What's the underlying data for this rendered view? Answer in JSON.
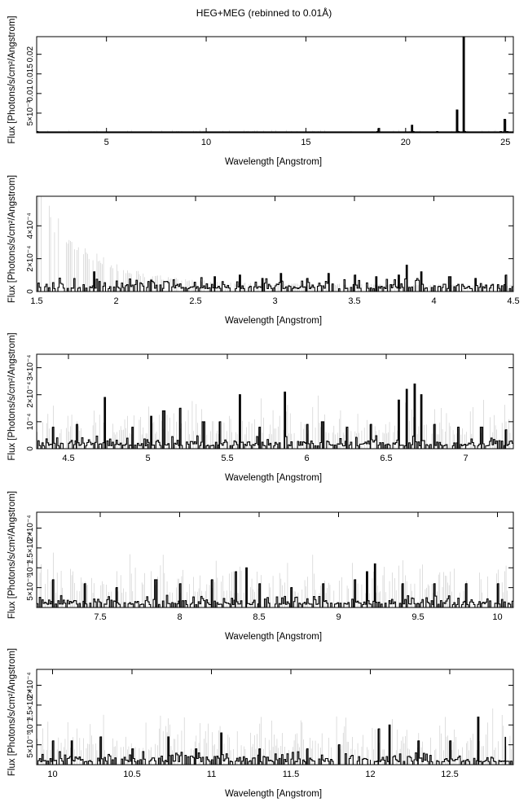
{
  "page_title": "HEG+MEG (rebinned to 0.01Å)",
  "chart_data": [
    {
      "type": "line",
      "title": "HEG+MEG (rebinned to 0.01Å)",
      "xlabel": "Wavelength [Angstrom]",
      "ylabel": "Flux [Photons/s/cm²/Angstrom]",
      "xlim": [
        1.5,
        25.4
      ],
      "ylim": [
        0,
        0.0245
      ],
      "xticks": [
        5,
        10,
        15,
        20,
        25
      ],
      "xtick_labels": [
        "5",
        "10",
        "15",
        "20",
        "25"
      ],
      "yticks": [
        0.005,
        0.01,
        0.015,
        0.02
      ],
      "ytick_labels": [
        "5×10⁻³",
        "0.01",
        "0.015",
        "0.02"
      ],
      "series": [
        {
          "x": [
            1.5,
            3,
            5,
            7,
            9,
            11,
            13,
            15,
            17,
            18.6,
            18.63,
            18.66,
            20.3,
            20.33,
            20.36,
            21.6,
            22.55,
            22.6,
            22.65,
            22.9,
            22.93,
            22.96,
            24.8,
            25.0,
            25.05,
            25.1
          ],
          "y": [
            0.0003,
            0.0002,
            0.0002,
            0.0002,
            0.0002,
            0.0002,
            0.0002,
            0.0002,
            0.0002,
            0.0003,
            0.0011,
            0.0003,
            0.0003,
            0.0019,
            0.0003,
            0.0003,
            0.0003,
            0.0058,
            0.0003,
            0.0003,
            0.0245,
            0.0003,
            0.0003,
            0.0034,
            0.0003,
            0.0003
          ]
        }
      ]
    },
    {
      "type": "line",
      "xlabel": "Wavelength [Angstrom]",
      "ylabel": "Flux [Photons/s/cm²/Angstrom]",
      "xlim": [
        1.5,
        4.5
      ],
      "ylim": [
        0,
        0.00058
      ],
      "xticks": [
        1.5,
        2,
        2.5,
        3,
        3.5,
        4,
        4.5
      ],
      "xtick_labels": [
        "1.5",
        "2",
        "2.5",
        "3",
        "3.5",
        "4",
        "4.5"
      ],
      "yticks": [
        0,
        0.0002,
        0.0004
      ],
      "ytick_labels": [
        "0",
        "2×10⁻⁴",
        "4×10⁻⁴"
      ],
      "series": [
        {
          "x": [
            1.86,
            2.22,
            2.62,
            2.78,
            2.92,
            3.04,
            3.2,
            3.34,
            3.5,
            3.64,
            3.78,
            3.83,
            3.92,
            4.1,
            4.26,
            4.45
          ],
          "y": [
            0.00012,
            7e-05,
            9e-05,
            0.0001,
            8e-05,
            0.00011,
            8e-05,
            0.00011,
            0.0001,
            9e-05,
            0.0001,
            0.00016,
            0.00012,
            9e-05,
            8e-05,
            0.0001
          ]
        }
      ]
    },
    {
      "type": "line",
      "xlabel": "Wavelength [Angstrom]",
      "ylabel": "Flux [Photons/s/cm²/Angstrom]",
      "xlim": [
        4.3,
        7.3
      ],
      "ylim": [
        0,
        0.00035
      ],
      "xticks": [
        4.5,
        5,
        5.5,
        6,
        6.5,
        7
      ],
      "xtick_labels": [
        "4.5",
        "5",
        "5.5",
        "6",
        "6.5",
        "7"
      ],
      "yticks": [
        0,
        0.0001,
        0.0002,
        0.0003
      ],
      "ytick_labels": [
        "0",
        "10⁻⁴",
        "2×10⁻⁴",
        "3×10⁻⁴"
      ],
      "series": [
        {
          "x": [
            4.4,
            4.55,
            4.73,
            4.9,
            5.02,
            5.1,
            5.2,
            5.35,
            5.45,
            5.58,
            5.7,
            5.86,
            6.0,
            6.1,
            6.25,
            6.4,
            6.58,
            6.63,
            6.68,
            6.72,
            6.8,
            6.95,
            7.1,
            7.25
          ],
          "y": [
            8e-05,
            9e-05,
            0.00019,
            8e-05,
            0.00012,
            0.00014,
            0.00015,
            0.0001,
            0.0001,
            0.0002,
            8e-05,
            0.00021,
            9e-05,
            0.0001,
            8e-05,
            9e-05,
            0.00018,
            0.00022,
            0.00024,
            0.0002,
            9e-05,
            8e-05,
            8e-05,
            7e-05
          ]
        }
      ]
    },
    {
      "type": "line",
      "xlabel": "Wavelength [Angstrom]",
      "ylabel": "Flux [Photons/s/cm²/Angstrom]",
      "xlim": [
        7.1,
        10.1
      ],
      "ylim": [
        0,
        0.00024
      ],
      "xticks": [
        7.5,
        8,
        8.5,
        9,
        9.5,
        10
      ],
      "xtick_labels": [
        "7.5",
        "8",
        "8.5",
        "9",
        "9.5",
        "10"
      ],
      "yticks": [
        5e-05,
        0.0001,
        0.00015,
        0.0002
      ],
      "ytick_labels": [
        "5×10⁻⁵",
        "10⁻⁴",
        "1.5×10⁻⁴",
        "2×10⁻⁴"
      ],
      "series": [
        {
          "x": [
            7.2,
            7.4,
            7.6,
            7.85,
            8.0,
            8.2,
            8.35,
            8.42,
            8.5,
            8.7,
            8.9,
            9.1,
            9.18,
            9.23,
            9.4,
            9.6,
            9.8,
            10.0
          ],
          "y": [
            7e-05,
            6e-05,
            5e-05,
            7e-05,
            6e-05,
            7e-05,
            9e-05,
            0.0001,
            6e-05,
            5e-05,
            6e-05,
            7e-05,
            9e-05,
            0.00011,
            6e-05,
            6e-05,
            6e-05,
            6e-05
          ]
        }
      ]
    },
    {
      "type": "line",
      "xlabel": "Wavelength [Angstrom]",
      "ylabel": "Flux [Photons/s/cm²/Angstrom]",
      "xlim": [
        9.9,
        12.9
      ],
      "ylim": [
        0,
        0.00024
      ],
      "xticks": [
        10,
        10.5,
        11,
        11.5,
        12,
        12.5
      ],
      "xtick_labels": [
        "10",
        "10.5",
        "11",
        "11.5",
        "12",
        "12.5"
      ],
      "yticks": [
        5e-05,
        0.0001,
        0.00015,
        0.0002
      ],
      "ytick_labels": [
        "5×10⁻⁵",
        "10⁻⁴",
        "1.5×10⁻⁴",
        "2×10⁻⁴"
      ],
      "series": [
        {
          "x": [
            10.0,
            10.12,
            10.3,
            10.5,
            10.73,
            10.9,
            11.06,
            11.3,
            11.6,
            11.8,
            12.05,
            12.12,
            12.3,
            12.5,
            12.68,
            12.85
          ],
          "y": [
            6e-05,
            6e-05,
            7e-05,
            4e-05,
            7e-05,
            4e-05,
            8e-05,
            4e-05,
            4e-05,
            5e-05,
            9e-05,
            0.0001,
            6e-05,
            6e-05,
            0.00012,
            7e-05
          ]
        }
      ]
    }
  ]
}
